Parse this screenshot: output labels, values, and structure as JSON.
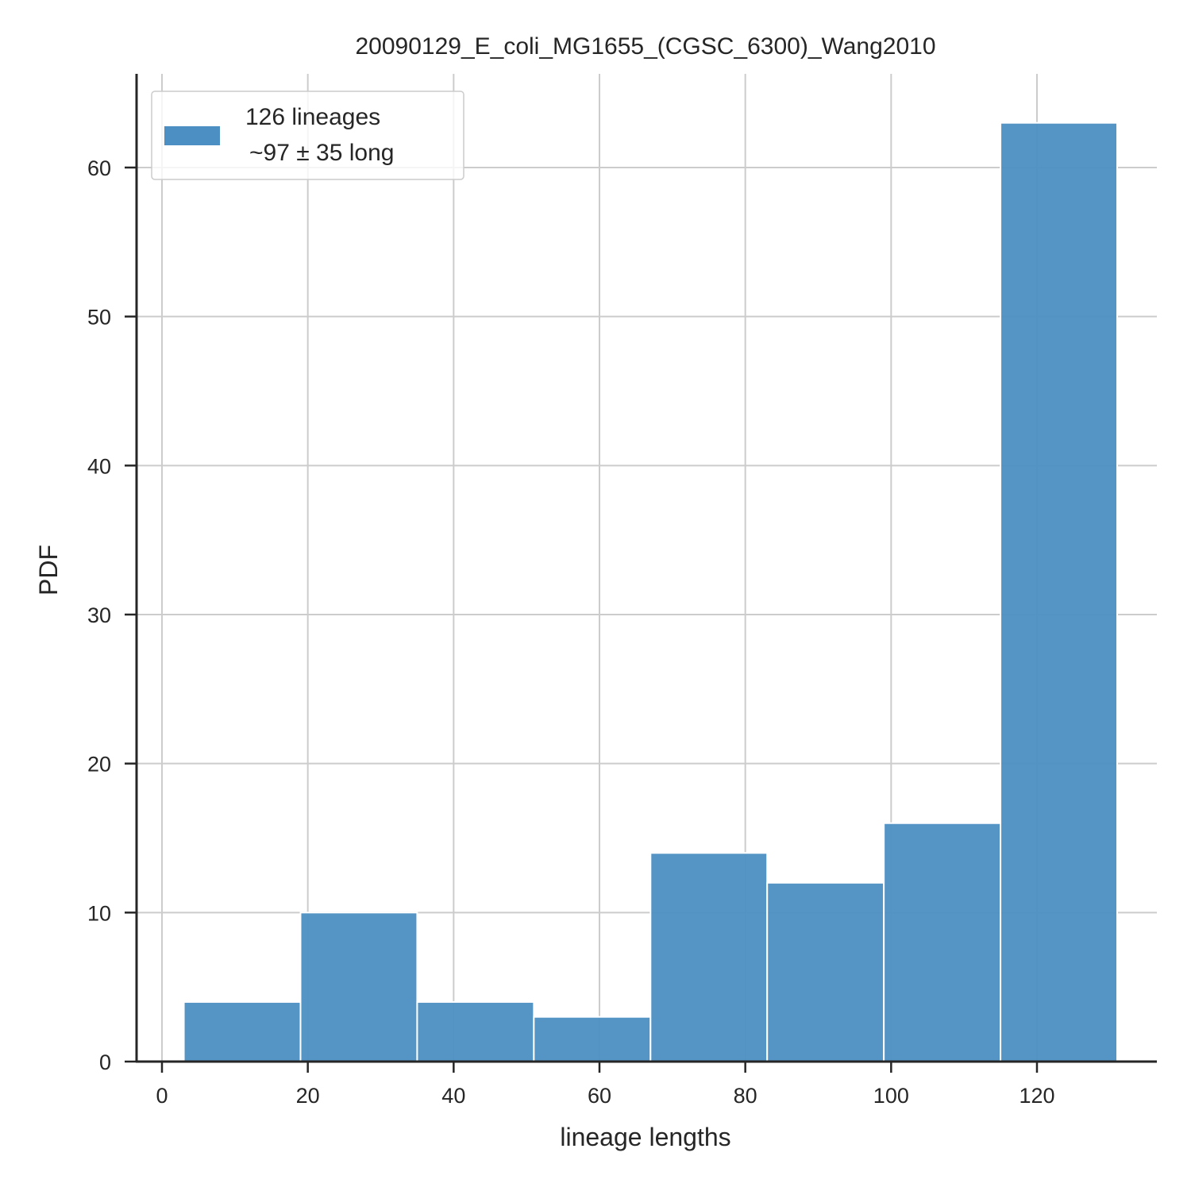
{
  "chart_data": {
    "type": "bar",
    "title": "20090129_E_coli_MG1655_(CGSC_6300)_Wang2010",
    "xlabel": "lineage lengths",
    "ylabel": "PDF",
    "xlim": [
      -3,
      136
    ],
    "ylim": [
      0,
      66
    ],
    "xticks": [
      0,
      20,
      40,
      60,
      80,
      100,
      120
    ],
    "yticks": [
      0,
      10,
      20,
      30,
      40,
      50,
      60
    ],
    "grid": true,
    "legend_position": "top-left",
    "bins": [
      {
        "x0": 3,
        "x1": 19,
        "value": 4
      },
      {
        "x0": 19,
        "x1": 35,
        "value": 10
      },
      {
        "x0": 35,
        "x1": 51,
        "value": 4
      },
      {
        "x0": 51,
        "x1": 67,
        "value": 3
      },
      {
        "x0": 67,
        "x1": 83,
        "value": 14
      },
      {
        "x0": 83,
        "x1": 99,
        "value": 12
      },
      {
        "x0": 99,
        "x1": 115,
        "value": 16
      },
      {
        "x0": 115,
        "x1": 131,
        "value": 63
      }
    ],
    "series": [
      {
        "name": "126 lineages",
        "name_line2": "~97 ± 35 long",
        "color": "#4c8fc3"
      }
    ]
  },
  "colors": {
    "bar": "#4c8fc3",
    "grid": "#cccccc",
    "axis": "#262626"
  }
}
